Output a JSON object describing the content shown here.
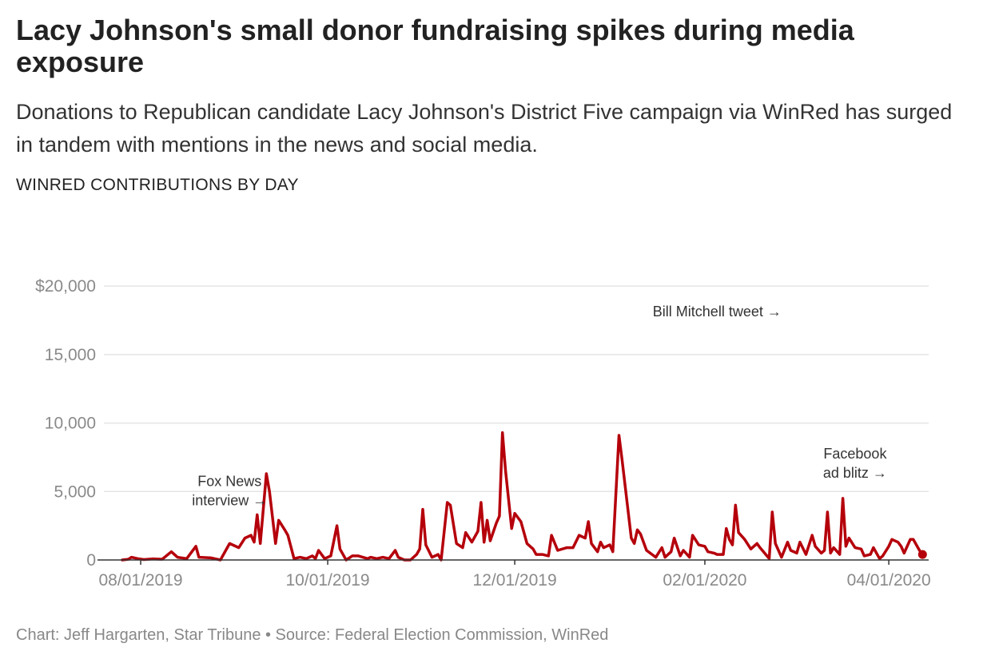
{
  "header": {
    "title": "Lacy Johnson's small donor fundraising spikes during media exposure",
    "subtitle": "Donations to Republican candidate Lacy Johnson's District Five campaign via WinRed has surged in tandem with mentions in the news and social media.",
    "chart_label": "WINRED CONTRIBUTIONS BY DAY"
  },
  "footer": {
    "credits": "Chart: Jeff Hargarten, Star Tribune • Source: Federal Election Commission, WinRed"
  },
  "colors": {
    "line": "#b5000b",
    "grid": "#e4e4e4",
    "axis": "#333333"
  },
  "chart_data": {
    "type": "line",
    "title": "Lacy Johnson's small donor fundraising spikes during media exposure",
    "subtitle": "Donations to Republican candidate Lacy Johnson's District Five campaign via WinRed has surged in tandem with mentions in the news and social media.",
    "ylabel": "WINRED CONTRIBUTIONS BY DAY",
    "xlabel": "",
    "x_range": [
      "2019-07-20",
      "2020-04-14"
    ],
    "ylim": [
      0,
      24500
    ],
    "grid": true,
    "y_ticks": [
      {
        "value": 0,
        "label": "0"
      },
      {
        "value": 5000,
        "label": "5,000"
      },
      {
        "value": 10000,
        "label": "10,000"
      },
      {
        "value": 15000,
        "label": "15,000"
      },
      {
        "value": 20000,
        "label": "$20,000"
      }
    ],
    "x_ticks": [
      {
        "date": "2019-08-01",
        "label": "08/01/2019"
      },
      {
        "date": "2019-10-01",
        "label": "10/01/2019"
      },
      {
        "date": "2019-12-01",
        "label": "12/01/2019"
      },
      {
        "date": "2020-02-01",
        "label": "02/01/2020"
      },
      {
        "date": "2020-04-01",
        "label": "04/01/2020"
      }
    ],
    "series": [
      {
        "values": [
          [
            "2019-07-26",
            0
          ],
          [
            "2019-07-28",
            50
          ],
          [
            "2019-07-29",
            200
          ],
          [
            "2019-07-31",
            100
          ],
          [
            "2019-08-02",
            30
          ],
          [
            "2019-08-05",
            80
          ],
          [
            "2019-08-08",
            50
          ],
          [
            "2019-08-11",
            600
          ],
          [
            "2019-08-13",
            200
          ],
          [
            "2019-08-16",
            100
          ],
          [
            "2019-08-19",
            1000
          ],
          [
            "2019-08-20",
            200
          ],
          [
            "2019-08-24",
            150
          ],
          [
            "2019-08-27",
            0
          ],
          [
            "2019-08-30",
            1200
          ],
          [
            "2019-09-02",
            900
          ],
          [
            "2019-09-04",
            1600
          ],
          [
            "2019-09-06",
            1800
          ],
          [
            "2019-09-07",
            1300
          ],
          [
            "2019-09-08",
            3300
          ],
          [
            "2019-09-09",
            1200
          ],
          [
            "2019-09-11",
            6300
          ],
          [
            "2019-09-12",
            5000
          ],
          [
            "2019-09-14",
            1200
          ],
          [
            "2019-09-15",
            2900
          ],
          [
            "2019-09-17",
            2200
          ],
          [
            "2019-09-18",
            1800
          ],
          [
            "2019-09-20",
            100
          ],
          [
            "2019-09-22",
            200
          ],
          [
            "2019-09-24",
            100
          ],
          [
            "2019-09-26",
            300
          ],
          [
            "2019-09-27",
            100
          ],
          [
            "2019-09-28",
            700
          ],
          [
            "2019-09-30",
            100
          ],
          [
            "2019-10-02",
            300
          ],
          [
            "2019-10-04",
            2500
          ],
          [
            "2019-10-05",
            800
          ],
          [
            "2019-10-07",
            0
          ],
          [
            "2019-10-09",
            300
          ],
          [
            "2019-10-11",
            300
          ],
          [
            "2019-10-14",
            100
          ],
          [
            "2019-10-15",
            200
          ],
          [
            "2019-10-17",
            100
          ],
          [
            "2019-10-19",
            200
          ],
          [
            "2019-10-21",
            100
          ],
          [
            "2019-10-23",
            700
          ],
          [
            "2019-10-24",
            200
          ],
          [
            "2019-10-26",
            0
          ],
          [
            "2019-10-28",
            0
          ],
          [
            "2019-10-30",
            400
          ],
          [
            "2019-10-31",
            800
          ],
          [
            "2019-11-01",
            3700
          ],
          [
            "2019-11-02",
            1100
          ],
          [
            "2019-11-04",
            200
          ],
          [
            "2019-11-06",
            400
          ],
          [
            "2019-11-07",
            0
          ],
          [
            "2019-11-09",
            4200
          ],
          [
            "2019-11-10",
            4000
          ],
          [
            "2019-11-12",
            1200
          ],
          [
            "2019-11-14",
            900
          ],
          [
            "2019-11-15",
            2000
          ],
          [
            "2019-11-17",
            1300
          ],
          [
            "2019-11-19",
            2100
          ],
          [
            "2019-11-20",
            4200
          ],
          [
            "2019-11-21",
            1300
          ],
          [
            "2019-11-22",
            2900
          ],
          [
            "2019-11-23",
            1400
          ],
          [
            "2019-11-25",
            2700
          ],
          [
            "2019-11-26",
            3200
          ],
          [
            "2019-11-27",
            9300
          ],
          [
            "2019-11-28",
            6500
          ],
          [
            "2019-11-30",
            2300
          ],
          [
            "2019-12-01",
            3400
          ],
          [
            "2019-12-03",
            2800
          ],
          [
            "2019-12-05",
            1200
          ],
          [
            "2019-12-07",
            800
          ],
          [
            "2019-12-08",
            400
          ],
          [
            "2019-12-10",
            400
          ],
          [
            "2019-12-12",
            300
          ],
          [
            "2019-12-13",
            1800
          ],
          [
            "2019-12-15",
            700
          ],
          [
            "2019-12-18",
            900
          ],
          [
            "2019-12-20",
            900
          ],
          [
            "2019-12-22",
            1800
          ],
          [
            "2019-12-24",
            1600
          ],
          [
            "2019-12-25",
            2800
          ],
          [
            "2019-12-26",
            1200
          ],
          [
            "2019-12-28",
            600
          ],
          [
            "2019-12-29",
            1300
          ],
          [
            "2019-12-30",
            900
          ],
          [
            "2020-01-01",
            1100
          ],
          [
            "2020-01-02",
            600
          ],
          [
            "2020-01-04",
            9100
          ],
          [
            "2020-01-05",
            7300
          ],
          [
            "2020-01-08",
            1600
          ],
          [
            "2020-01-09",
            1200
          ],
          [
            "2020-01-10",
            2200
          ],
          [
            "2020-01-11",
            1900
          ],
          [
            "2020-01-13",
            700
          ],
          [
            "2020-01-16",
            200
          ],
          [
            "2020-01-18",
            900
          ],
          [
            "2020-01-19",
            200
          ],
          [
            "2020-01-21",
            600
          ],
          [
            "2020-01-22",
            1600
          ],
          [
            "2020-01-24",
            300
          ],
          [
            "2020-01-25",
            700
          ],
          [
            "2020-01-27",
            200
          ],
          [
            "2020-01-28",
            1800
          ],
          [
            "2020-01-30",
            1100
          ],
          [
            "2020-02-01",
            1000
          ],
          [
            "2020-02-02",
            600
          ],
          [
            "2020-02-04",
            500
          ],
          [
            "2020-02-05",
            400
          ],
          [
            "2020-02-07",
            400
          ],
          [
            "2020-02-08",
            2300
          ],
          [
            "2020-02-09",
            1500
          ],
          [
            "2020-02-10",
            1100
          ],
          [
            "2020-02-11",
            4000
          ],
          [
            "2020-02-12",
            2000
          ],
          [
            "2020-02-14",
            1500
          ],
          [
            "2020-02-16",
            800
          ],
          [
            "2020-02-18",
            1200
          ],
          [
            "2020-02-19",
            900
          ],
          [
            "2020-02-22",
            100
          ],
          [
            "2020-02-23",
            3500
          ],
          [
            "2020-02-24",
            1200
          ],
          [
            "2020-02-26",
            200
          ],
          [
            "2020-02-28",
            1300
          ],
          [
            "2020-02-29",
            700
          ],
          [
            "2020-03-02",
            500
          ],
          [
            "2020-03-03",
            1300
          ],
          [
            "2020-03-05",
            400
          ],
          [
            "2020-03-07",
            1800
          ],
          [
            "2020-03-08",
            1000
          ],
          [
            "2020-03-10",
            500
          ],
          [
            "2020-03-11",
            700
          ],
          [
            "2020-03-12",
            3500
          ],
          [
            "2020-03-13",
            500
          ],
          [
            "2020-03-14",
            900
          ],
          [
            "2020-03-16",
            400
          ],
          [
            "2020-03-17",
            4500
          ],
          [
            "2020-03-18",
            1000
          ],
          [
            "2020-03-19",
            1600
          ],
          [
            "2020-03-21",
            900
          ],
          [
            "2020-03-23",
            800
          ],
          [
            "2020-03-24",
            300
          ],
          [
            "2020-03-26",
            400
          ],
          [
            "2020-03-27",
            900
          ],
          [
            "2020-03-29",
            100
          ],
          [
            "2020-03-30",
            300
          ],
          [
            "2020-04-01",
            1000
          ],
          [
            "2020-04-02",
            1500
          ],
          [
            "2020-04-04",
            1300
          ],
          [
            "2020-04-05",
            1000
          ],
          [
            "2020-04-06",
            500
          ],
          [
            "2020-04-08",
            1500
          ],
          [
            "2020-04-09",
            1500
          ],
          [
            "2020-04-11",
            700
          ],
          [
            "2020-04-12",
            400
          ]
        ]
      }
    ],
    "annotations": [
      {
        "lines": [
          "Fox News",
          "interview →"
        ]
      },
      {
        "lines": [
          "Bill Mitchell tweet →"
        ]
      },
      {
        "lines": [
          "Facebook",
          "ad blitz →"
        ]
      }
    ]
  }
}
